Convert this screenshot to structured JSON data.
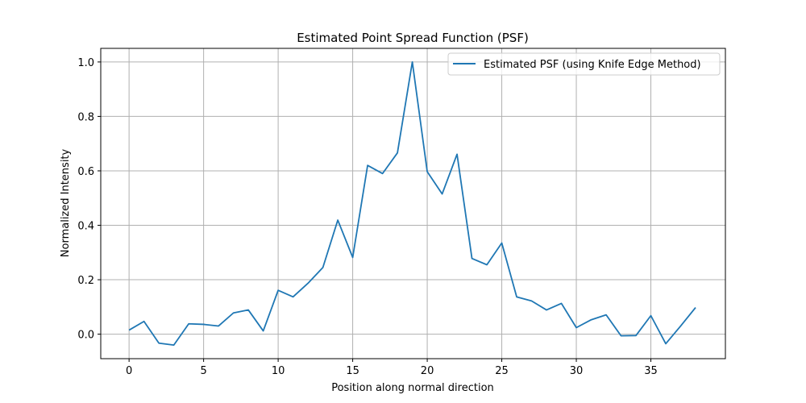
{
  "chart_data": {
    "type": "line",
    "title": "Estimated Point Spread Function (PSF)",
    "xlabel": "Position along normal direction",
    "ylabel": "Normalized Intensity",
    "xlim": [
      -1.9,
      40.0
    ],
    "ylim": [
      -0.09,
      1.05
    ],
    "xticks": [
      0,
      5,
      10,
      15,
      20,
      25,
      30,
      35
    ],
    "yticks": [
      0.0,
      0.2,
      0.4,
      0.6,
      0.8,
      1.0
    ],
    "xtick_labels": [
      "0",
      "5",
      "10",
      "15",
      "20",
      "25",
      "30",
      "35"
    ],
    "ytick_labels": [
      "0.0",
      "0.2",
      "0.4",
      "0.6",
      "0.8",
      "1.0"
    ],
    "grid": true,
    "legend_position": "top-right",
    "series": [
      {
        "name": "Estimated PSF (using Knife Edge Method)",
        "color": "#1f77b4",
        "x": [
          0,
          1,
          2,
          3,
          4,
          5,
          6,
          7,
          8,
          9,
          10,
          11,
          12,
          13,
          14,
          15,
          16,
          17,
          18,
          19,
          20,
          21,
          22,
          23,
          24,
          25,
          26,
          27,
          28,
          29,
          30,
          31,
          32,
          33,
          34,
          35,
          36,
          37,
          38
        ],
        "y": [
          0.015,
          0.047,
          -0.033,
          -0.04,
          0.038,
          0.036,
          0.03,
          0.078,
          0.089,
          0.012,
          0.161,
          0.137,
          0.187,
          0.245,
          0.419,
          0.282,
          0.62,
          0.59,
          0.666,
          1.0,
          0.597,
          0.515,
          0.661,
          0.278,
          0.255,
          0.335,
          0.137,
          0.122,
          0.089,
          0.113,
          0.024,
          0.053,
          0.071,
          -0.006,
          -0.005,
          0.068,
          -0.035,
          0.03,
          0.098
        ]
      }
    ]
  }
}
